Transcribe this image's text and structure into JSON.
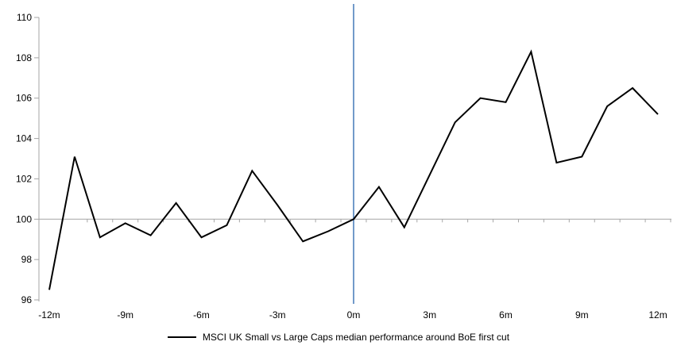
{
  "chart_data": {
    "type": "line",
    "title": "",
    "xlabel": "",
    "ylabel": "",
    "legend": "MSCI UK Small vs Large Caps median performance around BoE first cut",
    "legend_position": "bottom-center",
    "grid": "baseline-only",
    "x_unit_suffix": "m",
    "x": [
      -12,
      -11,
      -10,
      -9,
      -8,
      -7,
      -6,
      -5,
      -4,
      -3,
      -2,
      -1,
      0,
      1,
      2,
      3,
      4,
      5,
      6,
      7,
      8,
      9,
      10,
      11,
      12
    ],
    "series": [
      {
        "name": "MSCI UK Small vs Large Caps median performance around BoE first cut",
        "values": [
          96.5,
          103.1,
          99.1,
          99.8,
          99.2,
          100.8,
          99.1,
          99.7,
          102.4,
          100.7,
          98.9,
          99.4,
          100.0,
          101.6,
          99.6,
          102.2,
          104.8,
          106.0,
          105.8,
          108.3,
          102.8,
          103.1,
          105.6,
          106.5,
          105.2
        ]
      }
    ],
    "ylim": [
      96,
      110
    ],
    "y_ticks": [
      96,
      98,
      100,
      102,
      104,
      106,
      108,
      110
    ],
    "x_tick_months": [
      -12,
      -9,
      -6,
      -3,
      0,
      3,
      6,
      9,
      12
    ],
    "x_tick_labels": [
      "-12m",
      "-9m",
      "-6m",
      "-3m",
      "0m",
      "3m",
      "6m",
      "9m",
      "12m"
    ],
    "baseline_value": 100,
    "event_line_x": 0,
    "colors": {
      "series": "#000000",
      "event_line": "#4F81BD",
      "axis": "#A6A6A6",
      "text": "#000000",
      "background": "#FFFFFF"
    }
  }
}
